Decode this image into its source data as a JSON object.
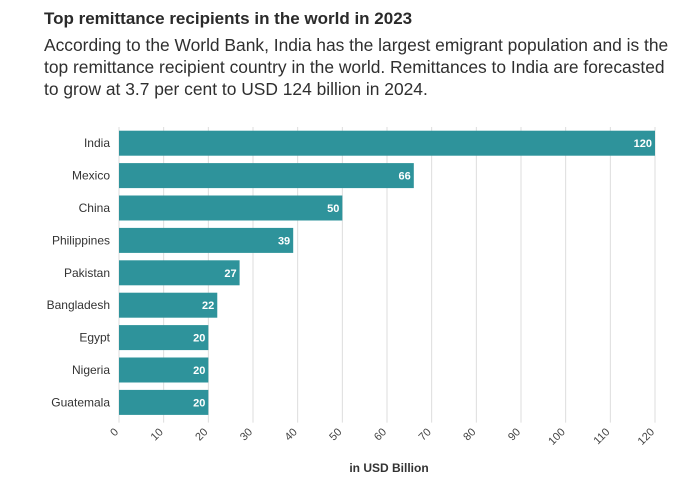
{
  "header": {
    "title": "Top remittance recipients in the world in 2023",
    "subtitle": "According to the World Bank, India has the largest emigrant population and is the top remittance recipient country in the world. Remittances to India are forecasted to grow at 3.7 per cent to USD 124 billion in 2024."
  },
  "colors": {
    "bar": "#2e939b",
    "grid": "#dddddd",
    "label": "#ffffff"
  },
  "chart_data": {
    "type": "bar",
    "orientation": "horizontal",
    "categories": [
      "India",
      "Mexico",
      "China",
      "Philippines",
      "Pakistan",
      "Bangladesh",
      "Egypt",
      "Nigeria",
      "Guatemala"
    ],
    "values": [
      120,
      66,
      50,
      39,
      27,
      22,
      20,
      20,
      20
    ],
    "data_labels": [
      "120",
      "66",
      "50",
      "39",
      "27",
      "22",
      "20",
      "20",
      "20"
    ],
    "xlabel": "in USD Billion",
    "xlim": [
      0,
      120
    ],
    "xticks": [
      0,
      10,
      20,
      30,
      40,
      50,
      60,
      70,
      80,
      90,
      100,
      110,
      120
    ],
    "tick_labels": [
      "0",
      "10",
      "20",
      "30",
      "40",
      "50",
      "60",
      "70",
      "80",
      "90",
      "100",
      "110",
      "120"
    ],
    "grid": true,
    "legend": "none"
  }
}
